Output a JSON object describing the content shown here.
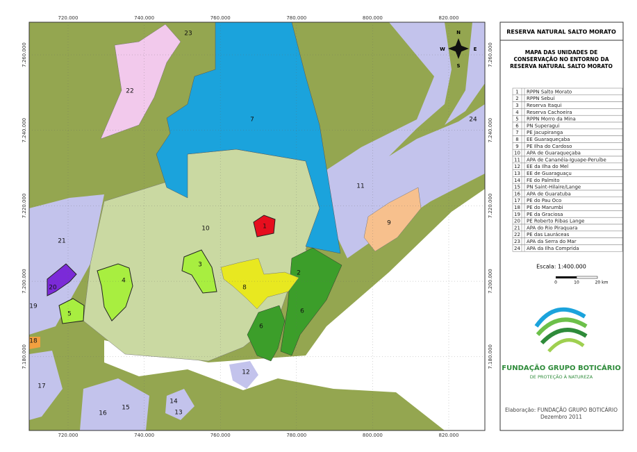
{
  "map": {
    "x_ticks": [
      "720.000",
      "740.000",
      "760.000",
      "780.000",
      "800.000",
      "820.000"
    ],
    "y_ticks": [
      "7.260.000",
      "7.240.000",
      "7.220.000",
      "7.200.000",
      "7.180.000"
    ],
    "compass": [
      "N",
      "W",
      "E",
      "S"
    ],
    "labels": [
      "1",
      "2",
      "3",
      "4",
      "5",
      "6",
      "6",
      "7",
      "8",
      "9",
      "10",
      "11",
      "12",
      "13",
      "14",
      "15",
      "16",
      "17",
      "18",
      "19",
      "20",
      "21",
      "22",
      "23",
      "24"
    ]
  },
  "panel": {
    "title": "RESERVA NATURAL SALTO MORATO",
    "subtitle": [
      "MAPA DAS UNIDADES DE",
      "CONSERVAÇÃO NO ENTORNO DA",
      "RESERVA NATURAL SALTO MORATO"
    ],
    "legend": [
      [
        "1",
        "RPPN Salto Morato"
      ],
      [
        "2",
        "RPPN Sebuí"
      ],
      [
        "3",
        "Reserva Itaqui"
      ],
      [
        "4",
        "Reserva Cachoeira"
      ],
      [
        "5",
        "RPPN Morro da Mina"
      ],
      [
        "6",
        "PN Superagui"
      ],
      [
        "7",
        "PE Jacupiranga"
      ],
      [
        "8",
        "EE Guaraqueçaba"
      ],
      [
        "9",
        "PE Ilha do Cardoso"
      ],
      [
        "10",
        "APA de Guaraqueçaba"
      ],
      [
        "11",
        "APA de Cananéia-Iguape-Peruíbe"
      ],
      [
        "12",
        "EE da Ilha do Mel"
      ],
      [
        "13",
        "EE de Guaraguaçu"
      ],
      [
        "14",
        "FE do Palmito"
      ],
      [
        "15",
        "PN Saint-Hilaire/Lange"
      ],
      [
        "16",
        "APA de Guaratuba"
      ],
      [
        "17",
        "PE do Pau Oco"
      ],
      [
        "18",
        "PE do Marumbi"
      ],
      [
        "19",
        "PE da Graciosa"
      ],
      [
        "20",
        "PE Roberto Ribas Lange"
      ],
      [
        "21",
        "APA do Rio Piraquara"
      ],
      [
        "22",
        "PE das Lauráceas"
      ],
      [
        "23",
        "APA da Serra do Mar"
      ],
      [
        "24",
        "APA da Ilha Comprida"
      ]
    ],
    "scale": "Escala: 1:400.000",
    "scale_ticks": [
      "0",
      "10",
      "20 km"
    ],
    "logo_name": "FUNDAÇÃO GRUPO BOTICÁRIO",
    "logo_tagline": "DE PROTEÇÃO À NATUREZA",
    "credit": "Elaboração: FUNDAÇÃO GRUPO BOTICÁRIO",
    "date": "Dezembro 2011"
  }
}
